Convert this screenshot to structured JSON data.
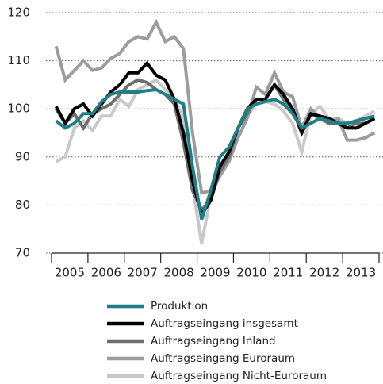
{
  "chart_data": {
    "type": "line",
    "categories": [
      null,
      "2005",
      null,
      null,
      null,
      "2006",
      null,
      null,
      null,
      "2007",
      null,
      null,
      null,
      "2008",
      null,
      null,
      null,
      "2009",
      null,
      null,
      null,
      "2010",
      null,
      null,
      null,
      "2011",
      null,
      null,
      null,
      "2012",
      null,
      null,
      null,
      "2013",
      null,
      null
    ],
    "ylim": [
      70,
      120
    ],
    "yticks": [
      70,
      80,
      90,
      100,
      110,
      120
    ],
    "grid": true,
    "series": [
      {
        "name": "Auftragseingang Nicht-Euroraum",
        "color": "#c9c9c9",
        "values": [
          89,
          90,
          96,
          97.5,
          95.5,
          98.5,
          98.5,
          102,
          100.5,
          104,
          105,
          106,
          104,
          102,
          98,
          84,
          72,
          82,
          86,
          90,
          96,
          98.5,
          101,
          101.5,
          101,
          99.5,
          97,
          91,
          99,
          100.5,
          98,
          98,
          97,
          97.5,
          98.5,
          99.5
        ]
      },
      {
        "name": "Auftragseingang Euroraum",
        "color": "#9c9c9c",
        "values": [
          113,
          106,
          108,
          110,
          108,
          108.5,
          110.5,
          111.5,
          114,
          115,
          114.5,
          118,
          114,
          115,
          112.5,
          95,
          82.5,
          83,
          86,
          89,
          94,
          98,
          104.5,
          103,
          107.5,
          103.5,
          102.5,
          96,
          100,
          98,
          97,
          98,
          93.5,
          93.5,
          94,
          95
        ]
      },
      {
        "name": "Auftragseingang Inland",
        "color": "#6e6e6e",
        "values": [
          100,
          97,
          99,
          96,
          99,
          100,
          101,
          103,
          105,
          106,
          105.5,
          104,
          103,
          101,
          93,
          83,
          79,
          81,
          87,
          90,
          96,
          99,
          102,
          102,
          105,
          102,
          100,
          95,
          99,
          98,
          97,
          97,
          96,
          97,
          97,
          98
        ]
      },
      {
        "name": "Auftragseingang insgesamt",
        "color": "#000000",
        "values": [
          100.5,
          97,
          100,
          101,
          98.5,
          101,
          103.5,
          105,
          107.5,
          107.5,
          109.5,
          107,
          106,
          102,
          95,
          85,
          78,
          81,
          88,
          91,
          96,
          100,
          102,
          102,
          105,
          103,
          100,
          95,
          99,
          98.5,
          98,
          97,
          96,
          96,
          97,
          98
        ]
      },
      {
        "name": "Produktion",
        "color": "#1f7f86",
        "values": [
          97.5,
          96,
          97,
          99,
          99,
          101.5,
          103,
          103.5,
          103.5,
          103.5,
          103.8,
          104,
          103,
          102,
          101,
          88,
          77,
          83,
          90,
          92,
          96,
          100,
          101,
          101.5,
          102,
          101,
          99,
          96,
          97,
          98,
          97.5,
          97,
          97,
          97.5,
          98,
          98.5
        ]
      }
    ]
  }
}
